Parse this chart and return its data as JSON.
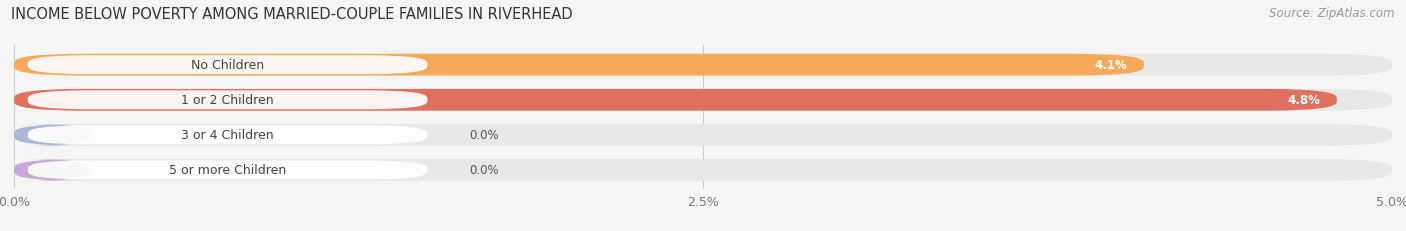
{
  "title": "INCOME BELOW POVERTY AMONG MARRIED-COUPLE FAMILIES IN RIVERHEAD",
  "source": "Source: ZipAtlas.com",
  "categories": [
    "No Children",
    "1 or 2 Children",
    "3 or 4 Children",
    "5 or more Children"
  ],
  "values": [
    4.1,
    4.8,
    0.0,
    0.0
  ],
  "bar_colors": [
    "#f5a959",
    "#e07060",
    "#a8b8d8",
    "#c8a8d8"
  ],
  "xlim": [
    0,
    5.0
  ],
  "xticks": [
    0.0,
    2.5,
    5.0
  ],
  "xticklabels": [
    "0.0%",
    "2.5%",
    "5.0%"
  ],
  "background_color": "#f5f5f5",
  "bar_bg_color": "#e8e8e8",
  "label_pill_color": "#ffffff",
  "title_fontsize": 10.5,
  "source_fontsize": 8.5,
  "label_fontsize": 9,
  "value_fontsize": 8.5
}
